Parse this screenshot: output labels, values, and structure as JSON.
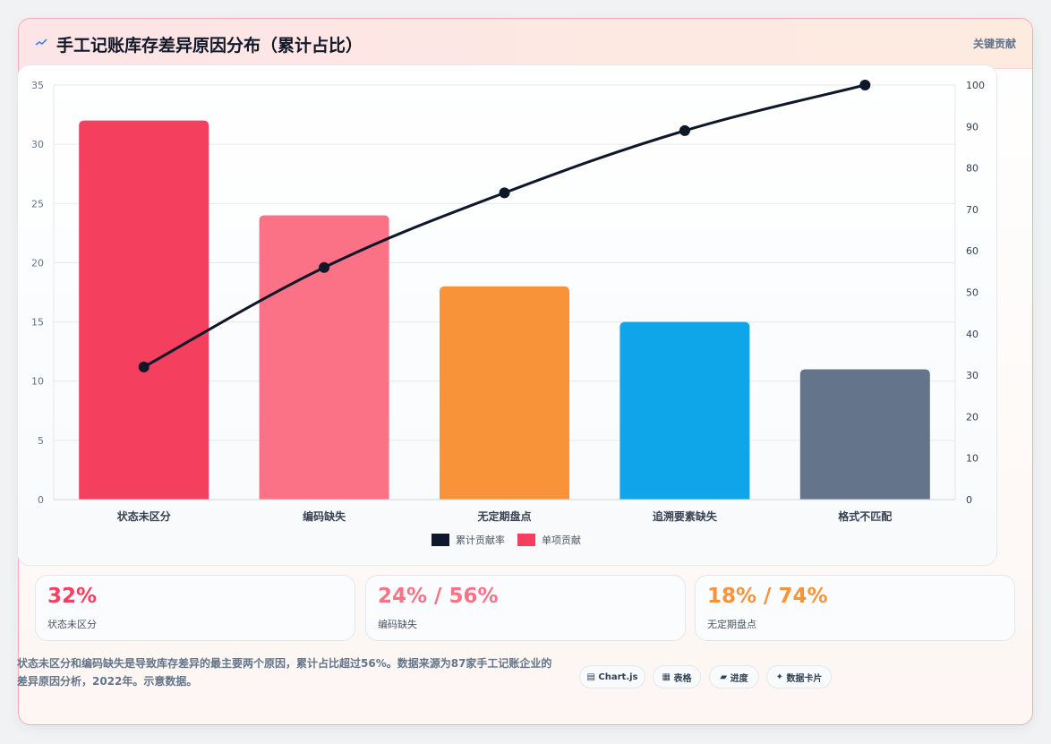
{
  "header": {
    "title": "手工记账库存差异原因分布（累计占比）",
    "link_label": "关键贡献"
  },
  "chart_data": {
    "type": "bar",
    "categories": [
      "状态未区分",
      "编码缺失",
      "无定期盘点",
      "追溯要素缺失",
      "格式不匹配"
    ],
    "series": [
      {
        "name": "单项贡献",
        "type": "bar",
        "axis": "left",
        "values": [
          32,
          24,
          18,
          15,
          11
        ],
        "colors": [
          "#f43f5e",
          "#fb7185",
          "#f99339",
          "#0ea5e9",
          "#64748b"
        ]
      },
      {
        "name": "累计贡献率",
        "type": "line",
        "axis": "right",
        "values": [
          32,
          56,
          74,
          89,
          100
        ],
        "color": "#0f172a"
      }
    ],
    "y_left": {
      "min": 0,
      "max": 35,
      "ticks": [
        "0",
        "5",
        "10",
        "15",
        "20",
        "25",
        "30",
        "35"
      ]
    },
    "y_right": {
      "min": 0,
      "max": 100,
      "ticks": [
        "0",
        "10",
        "20",
        "30",
        "40",
        "50",
        "60",
        "70",
        "80",
        "90",
        "100"
      ]
    },
    "grid": true,
    "legend": {
      "position": "bottom",
      "items": [
        {
          "label": "累计贡献率",
          "color": "#0f172a"
        },
        {
          "label": "单项贡献",
          "color": "#f43f5e"
        }
      ]
    }
  },
  "stats": [
    {
      "value": "32%",
      "label": "状态未区分",
      "color": "#f43f5e"
    },
    {
      "value": "24% / 56%",
      "label": "编码缺失",
      "color": "#fb7185"
    },
    {
      "value": "18% / 74%",
      "label": "无定期盘点",
      "color": "#f99339"
    }
  ],
  "footer": {
    "note": "状态未区分和编码缺失是导致库存差异的最主要两个原因，累计占比超过56%。数据来源为87家手工记账企业的差异原因分析，2022年。示意数据。",
    "chips": [
      {
        "icon": "▤",
        "label": "Chart.js"
      },
      {
        "icon": "▦",
        "label": "表格"
      },
      {
        "icon": "▰",
        "label": "进度"
      },
      {
        "icon": "✦",
        "label": "数据卡片"
      }
    ]
  }
}
